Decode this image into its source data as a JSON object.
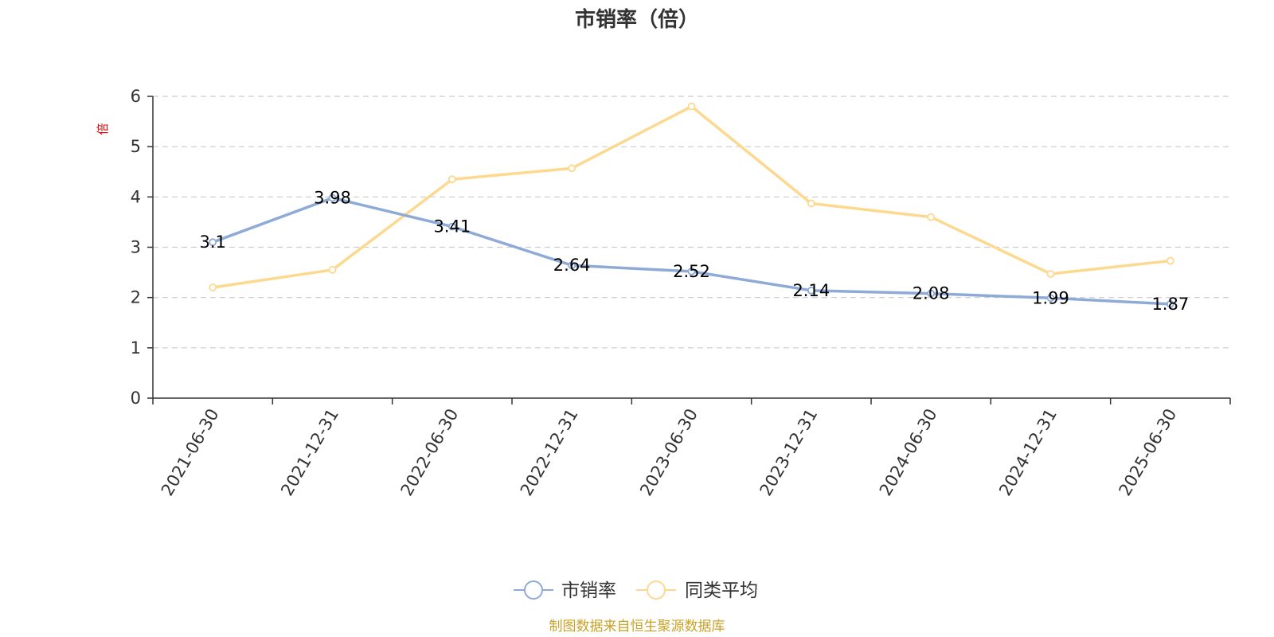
{
  "title": "市销率（倍）",
  "source": "制图数据来自恒生聚源数据库",
  "colors": {
    "series_main": "#8eaad6",
    "series_avg": "#fcd98f",
    "axis": "#333333",
    "grid": "#cccccc",
    "unit": "#e60000",
    "source": "#c9a227"
  },
  "chart_data": {
    "type": "line",
    "title": "市销率（倍）",
    "ylabel": "倍",
    "ylim": [
      0,
      6
    ],
    "yticks": [
      "0",
      "1",
      "2",
      "3",
      "4",
      "5",
      "6"
    ],
    "grid": true,
    "legend_position": "bottom",
    "categories": [
      "2021-06-30",
      "2021-12-31",
      "2022-06-30",
      "2022-12-31",
      "2023-06-30",
      "2023-12-31",
      "2024-06-30",
      "2024-12-31",
      "2025-06-30"
    ],
    "series": [
      {
        "name": "市销率",
        "color": "#8eaad6",
        "values": [
          3.1,
          3.98,
          3.41,
          2.64,
          2.52,
          2.14,
          2.08,
          1.99,
          1.87
        ],
        "labels": [
          "3.1",
          "3.98",
          "3.41",
          "2.64",
          "2.52",
          "2.14",
          "2.08",
          "1.99",
          "1.87"
        ]
      },
      {
        "name": "同类平均",
        "color": "#fcd98f",
        "values": [
          2.2,
          2.55,
          4.35,
          4.57,
          5.8,
          3.87,
          3.6,
          2.47,
          2.73
        ]
      }
    ]
  }
}
